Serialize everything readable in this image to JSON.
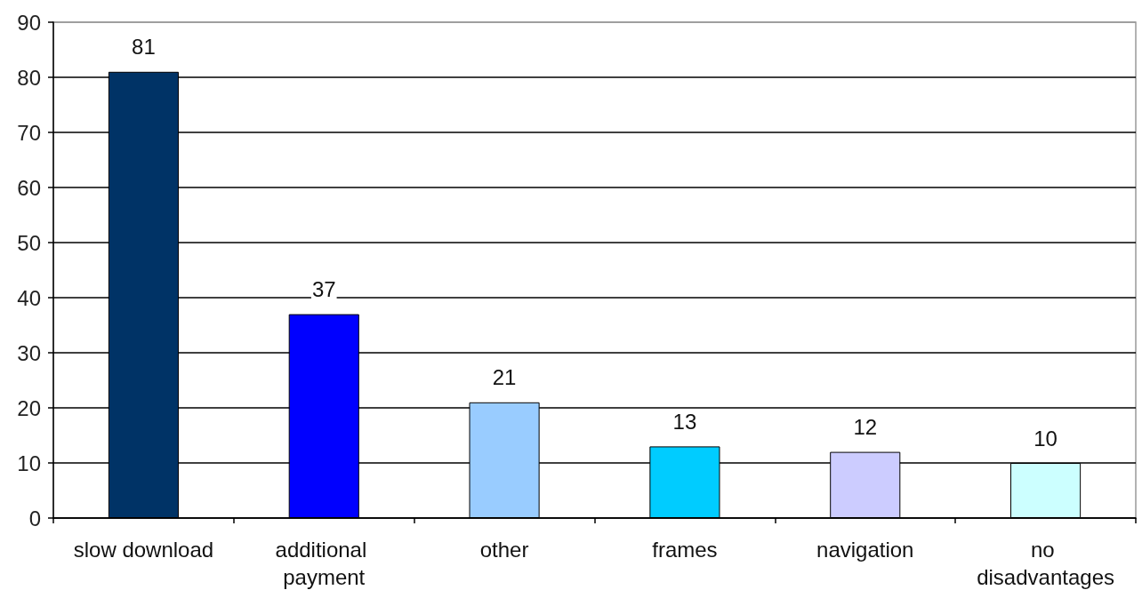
{
  "chart_data": {
    "type": "bar",
    "categories": [
      "slow download",
      "additional payment",
      "other",
      "frames",
      "navigation",
      "no disadvantages"
    ],
    "values": [
      81,
      37,
      21,
      13,
      12,
      10
    ],
    "colors": [
      "#003366",
      "#0000ff",
      "#99ccff",
      "#00ccff",
      "#ccccff",
      "#ccffff"
    ],
    "ylim": [
      0,
      90
    ],
    "yticks": [
      0,
      10,
      20,
      30,
      40,
      50,
      60,
      70,
      80,
      90
    ],
    "grid": "y",
    "data_labels": true
  }
}
